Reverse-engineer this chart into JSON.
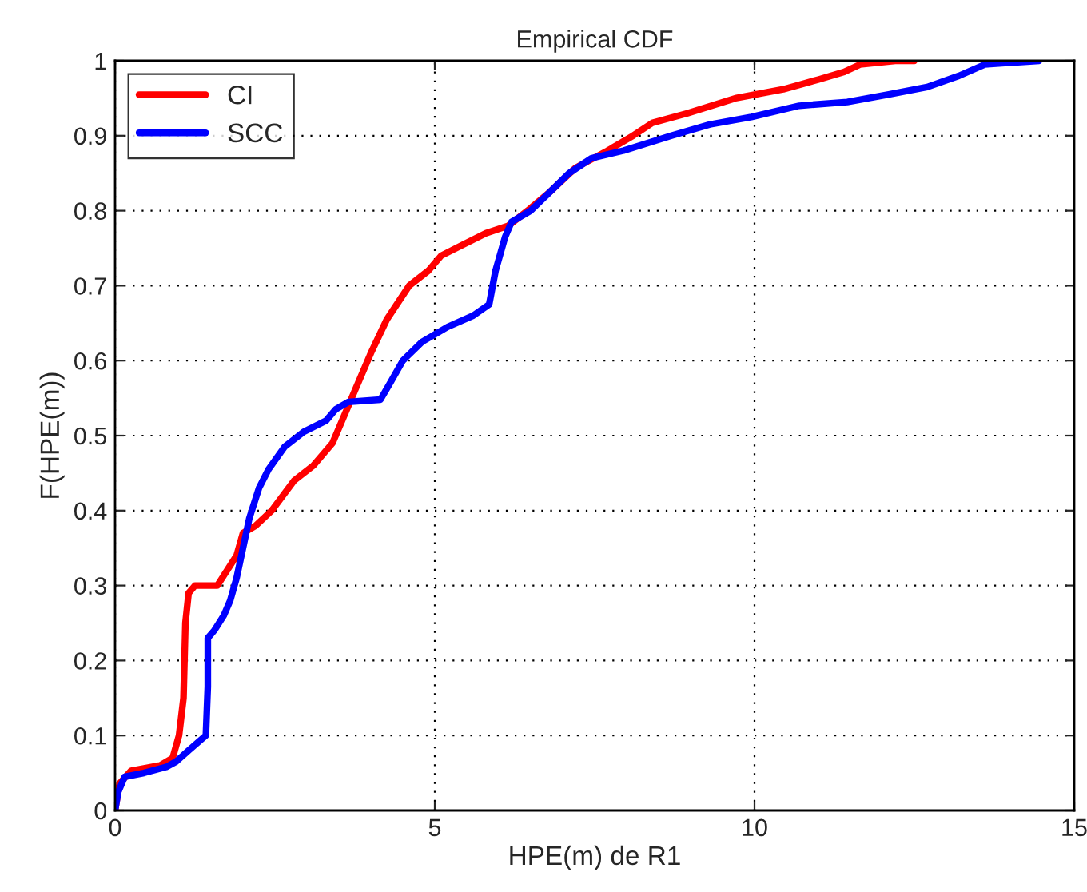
{
  "chart_data": {
    "type": "line",
    "title": "Empirical CDF",
    "xlabel": "HPE(m) de R1",
    "ylabel": "F(HPE(m))",
    "xlim": [
      0,
      15
    ],
    "xticks": [
      0,
      5,
      10,
      15
    ],
    "ylim": [
      0,
      1
    ],
    "yticks": [
      0,
      0.1,
      0.2,
      0.3,
      0.4,
      0.5,
      0.6,
      0.7,
      0.8,
      0.9,
      1
    ],
    "grid": true,
    "legend": "top left",
    "line_style": "solid",
    "marker": "none",
    "series": [
      {
        "name": "CI",
        "color": "#ff0000",
        "x": [
          0,
          0.07,
          0.25,
          0.7,
          0.9,
          1.0,
          1.07,
          1.1,
          1.15,
          1.25,
          1.6,
          1.75,
          1.9,
          2.0,
          2.2,
          2.45,
          2.8,
          3.1,
          3.4,
          3.6,
          3.75,
          4.0,
          4.25,
          4.6,
          4.9,
          5.1,
          5.45,
          5.8,
          6.15,
          6.45,
          6.8,
          7.2,
          7.7,
          8.1,
          8.4,
          8.95,
          9.7,
          10.45,
          11.0,
          11.4,
          11.65,
          12.2,
          12.5
        ],
        "values": [
          0,
          0.036,
          0.053,
          0.06,
          0.07,
          0.1,
          0.15,
          0.25,
          0.29,
          0.3,
          0.3,
          0.32,
          0.34,
          0.37,
          0.38,
          0.4,
          0.44,
          0.46,
          0.49,
          0.53,
          0.56,
          0.61,
          0.655,
          0.7,
          0.72,
          0.74,
          0.755,
          0.77,
          0.78,
          0.8,
          0.825,
          0.857,
          0.88,
          0.9,
          0.917,
          0.93,
          0.95,
          0.962,
          0.975,
          0.985,
          0.995,
          1,
          1
        ]
      },
      {
        "name": "SCC",
        "color": "#0000ff",
        "x": [
          0,
          0.05,
          0.15,
          0.45,
          0.8,
          0.95,
          1.15,
          1.42,
          1.45,
          1.45,
          1.55,
          1.7,
          1.8,
          1.9,
          2.0,
          2.1,
          2.25,
          2.4,
          2.65,
          2.95,
          3.3,
          3.45,
          3.65,
          4.15,
          4.3,
          4.5,
          4.8,
          5.2,
          5.6,
          5.85,
          5.95,
          6.1,
          6.2,
          6.5,
          6.8,
          7.1,
          7.45,
          7.95,
          8.7,
          9.3,
          9.95,
          10.7,
          11.45,
          12.1,
          12.7,
          13.2,
          13.6,
          14.45
        ],
        "values": [
          0,
          0.025,
          0.045,
          0.05,
          0.058,
          0.065,
          0.08,
          0.1,
          0.165,
          0.23,
          0.24,
          0.26,
          0.28,
          0.31,
          0.35,
          0.39,
          0.43,
          0.455,
          0.485,
          0.505,
          0.52,
          0.535,
          0.545,
          0.548,
          0.57,
          0.6,
          0.625,
          0.645,
          0.66,
          0.675,
          0.72,
          0.765,
          0.785,
          0.8,
          0.825,
          0.85,
          0.87,
          0.88,
          0.9,
          0.915,
          0.925,
          0.94,
          0.945,
          0.955,
          0.965,
          0.98,
          0.995,
          1
        ]
      }
    ]
  }
}
